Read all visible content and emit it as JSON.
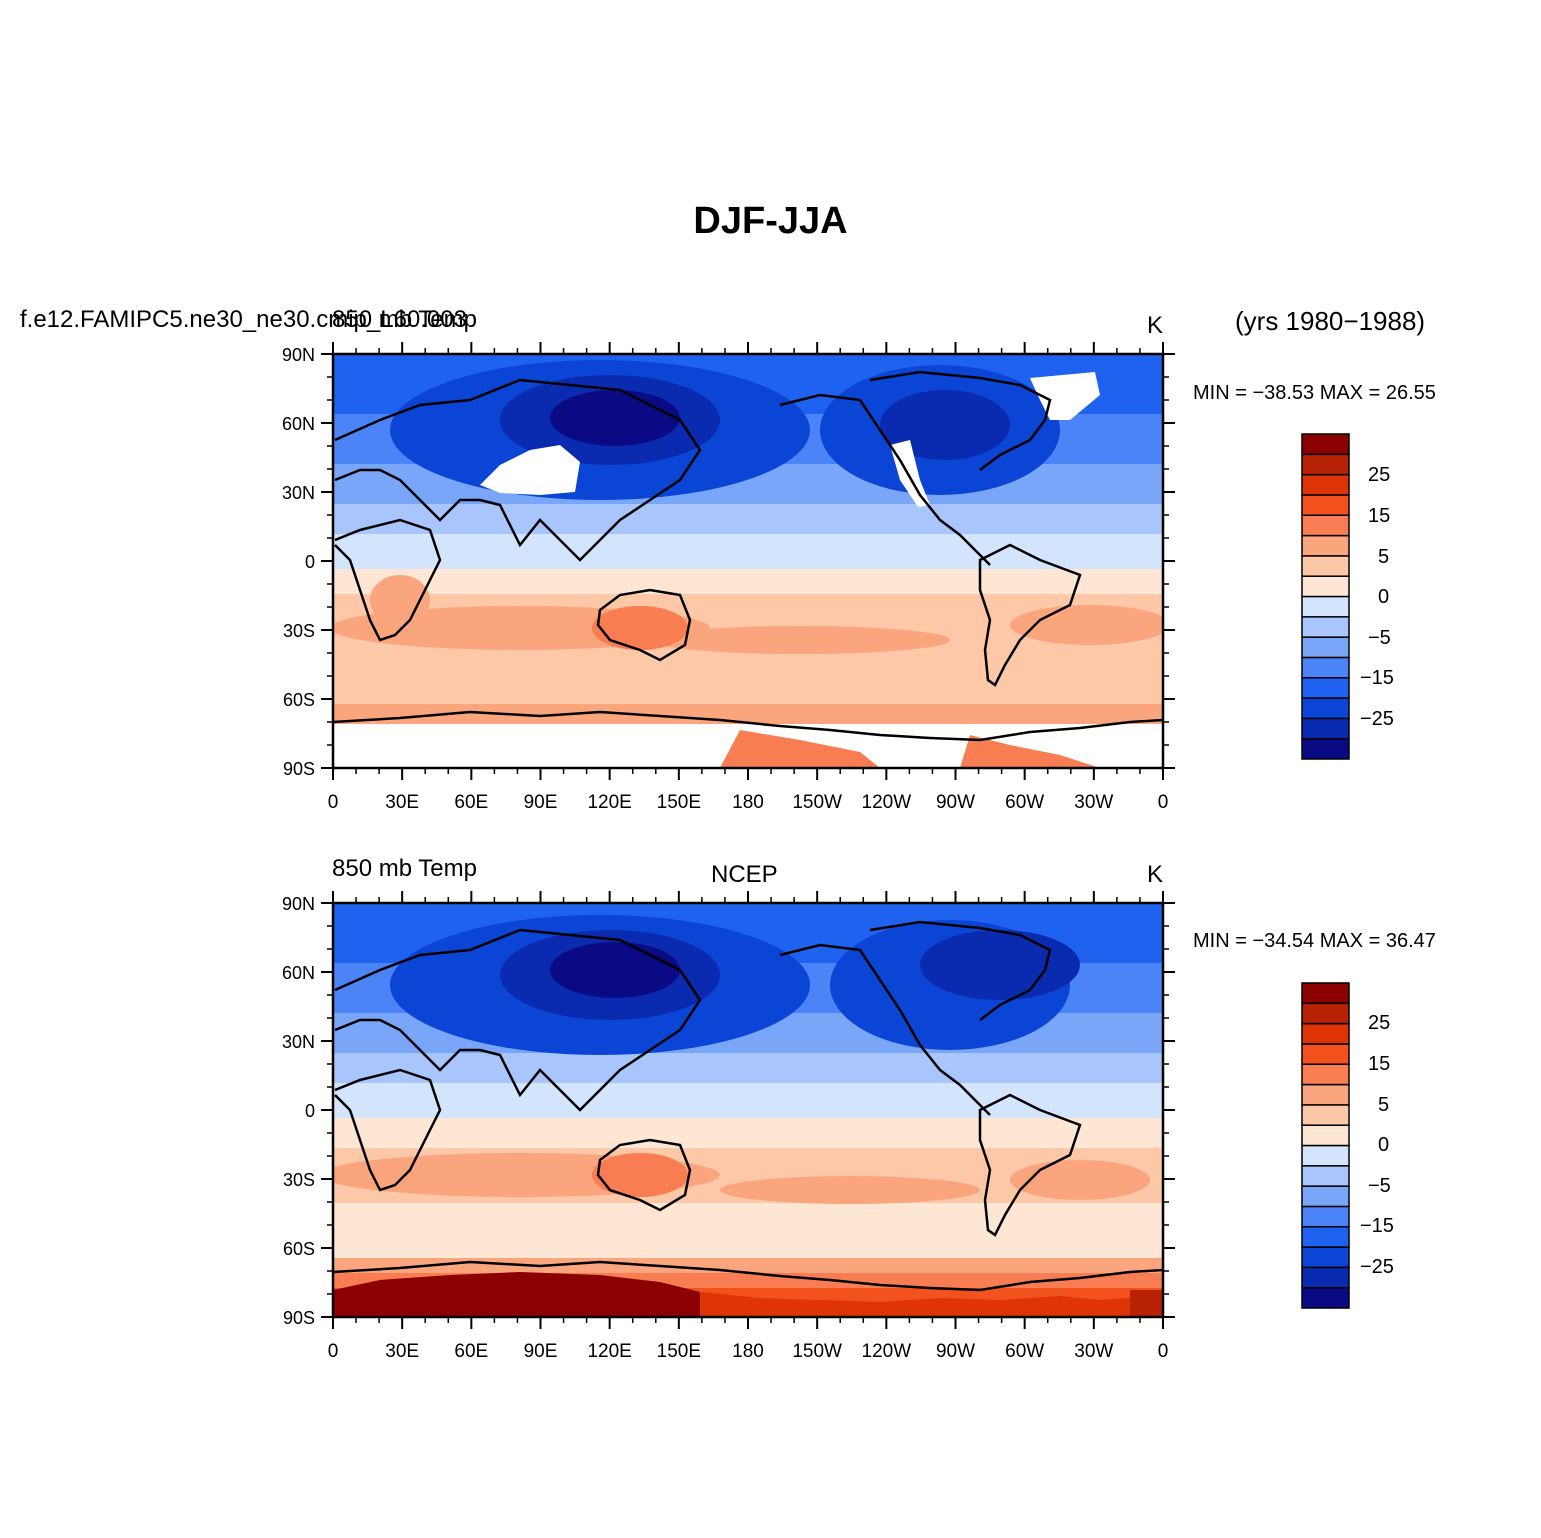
{
  "title": "DJF-JJA",
  "panels": [
    {
      "case_label": "f.e12.FAMIPC5.ne30_ne30.cmip_L60.003",
      "var_label": "850 mb Temp",
      "center_label": "",
      "units": "K",
      "years": "(yrs 1980−1988)",
      "minmax": "MIN = −38.53  MAX =   26.55"
    },
    {
      "case_label": "",
      "var_label": "850 mb Temp",
      "center_label": "NCEP",
      "units": "K",
      "years": "",
      "minmax": "MIN = −34.54  MAX =   36.47"
    }
  ],
  "axes": {
    "lat_ticks": [
      "90N",
      "60N",
      "30N",
      "0",
      "30S",
      "60S",
      "90S"
    ],
    "lon_ticks": [
      "0",
      "30E",
      "60E",
      "90E",
      "120E",
      "150E",
      "180",
      "150W",
      "120W",
      "90W",
      "60W",
      "30W",
      "0"
    ]
  },
  "colorbar": {
    "labels": [
      "25",
      "15",
      "5",
      "0",
      "−5",
      "−15",
      "−25"
    ],
    "colors": [
      "#0a0a85",
      "#0a2bb0",
      "#0b45d6",
      "#2062f0",
      "#4a84f7",
      "#7aa6fa",
      "#a9c6fc",
      "#d3e5fd",
      "#fde6d3",
      "#fcc8a8",
      "#fba57e",
      "#f87d52",
      "#f3521f",
      "#df3406",
      "#b82204",
      "#8b0000"
    ]
  }
}
